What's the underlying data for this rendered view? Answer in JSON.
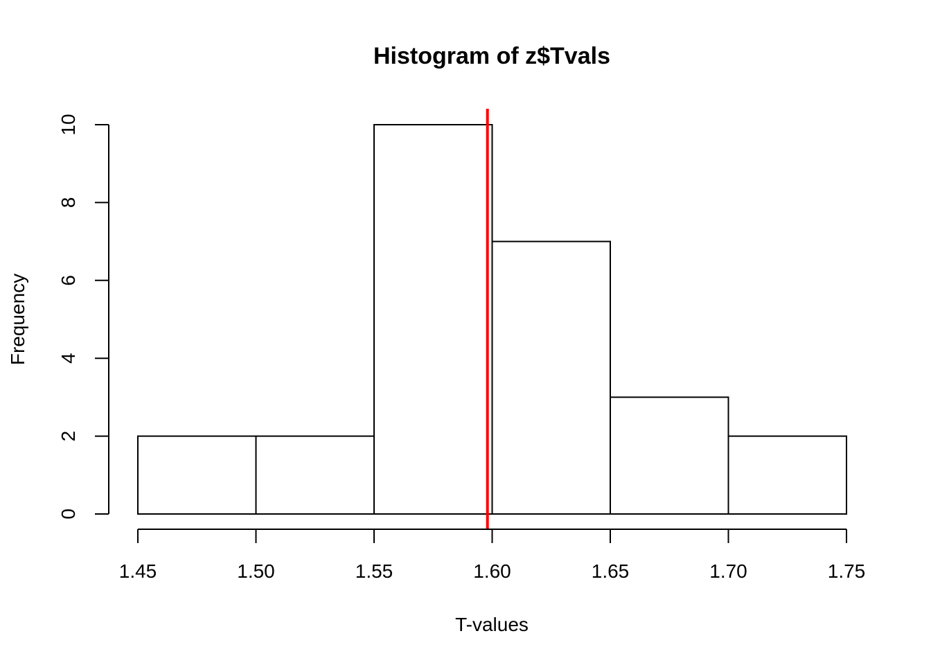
{
  "chart_data": {
    "type": "bar",
    "title": "Histogram of z$Tvals",
    "xlabel": "T-values",
    "ylabel": "Frequency",
    "bins": [
      {
        "from": 1.45,
        "to": 1.5,
        "count": 2
      },
      {
        "from": 1.5,
        "to": 1.55,
        "count": 2
      },
      {
        "from": 1.55,
        "to": 1.6,
        "count": 10
      },
      {
        "from": 1.6,
        "to": 1.65,
        "count": 7
      },
      {
        "from": 1.65,
        "to": 1.7,
        "count": 3
      },
      {
        "from": 1.7,
        "to": 1.75,
        "count": 2
      }
    ],
    "xlim": [
      1.45,
      1.75
    ],
    "ylim": [
      0,
      10
    ],
    "x_ticks": [
      "1.45",
      "1.50",
      "1.55",
      "1.60",
      "1.65",
      "1.70",
      "1.75"
    ],
    "y_ticks": [
      "0",
      "2",
      "4",
      "6",
      "8",
      "10"
    ],
    "vline": {
      "x": 1.598,
      "color": "#ff0000"
    },
    "bar_fill": "#ffffff",
    "bar_stroke": "#000000",
    "grid": false
  }
}
